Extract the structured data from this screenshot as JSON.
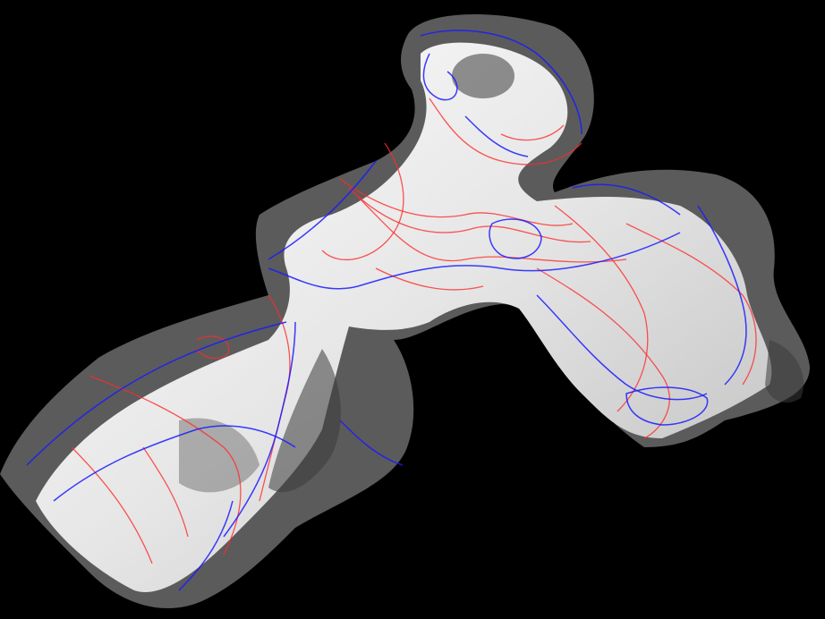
{
  "scene": {
    "background": "#000000",
    "shell_inner_color": "#f2f2f2",
    "shell_outer_color": "#9a9a9a",
    "streamline_colors": {
      "red": "#ff2a2a",
      "blue": "#1a1aff"
    }
  }
}
